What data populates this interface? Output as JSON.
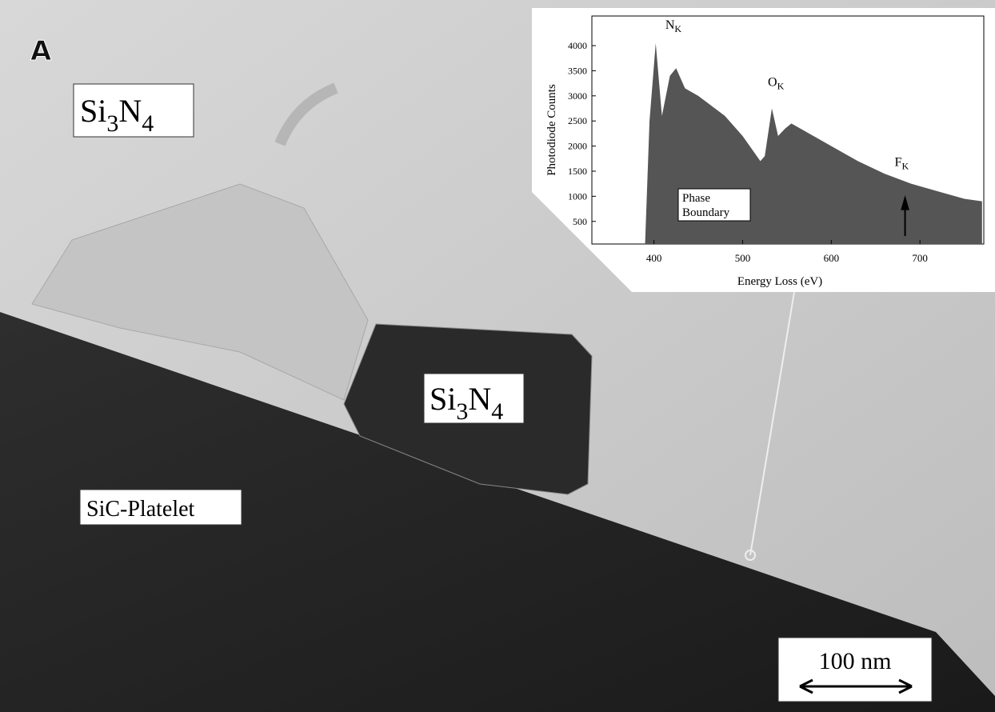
{
  "panel_label": "A",
  "labels": [
    [
      {
        "text": "Si"
      },
      {
        "text": "3",
        "sub": true
      },
      {
        "text": "N"
      },
      {
        "text": "4",
        "sub": true
      }
    ],
    [
      {
        "text": "Si"
      },
      {
        "text": "3",
        "sub": true
      },
      {
        "text": "N"
      },
      {
        "text": "4",
        "sub": true
      }
    ],
    [
      {
        "text": "SiC-Platelet"
      }
    ]
  ],
  "scale_bar": "100 nm",
  "chart_data": {
    "type": "area",
    "x_label": "Energy Loss (eV)",
    "y_label": "Photodiode Counts",
    "color": "#555555",
    "x": [
      330,
      390,
      395,
      402,
      409,
      418,
      425,
      435,
      450,
      480,
      500,
      520,
      525,
      533,
      540,
      548,
      555,
      570,
      600,
      630,
      660,
      690,
      720,
      750,
      770
    ],
    "values": [
      0,
      0,
      2500,
      4050,
      2600,
      3400,
      3550,
      3150,
      3000,
      2600,
      2200,
      1700,
      1800,
      2750,
      2200,
      2350,
      2450,
      2300,
      2000,
      1700,
      1450,
      1250,
      1100,
      950,
      900
    ],
    "xlim": [
      330,
      772
    ],
    "ylim": [
      50,
      4590
    ],
    "xticks": [
      400,
      500,
      600,
      700
    ],
    "yticks": [
      500,
      1000,
      1500,
      2000,
      2500,
      3000,
      3500,
      4000
    ],
    "annotations": [
      {
        "x": 402,
        "y": 4050,
        "parts": [
          {
            "text": "N"
          },
          {
            "text": "K",
            "sub": true
          }
        ]
      },
      {
        "x": 533,
        "y": 2750,
        "parts": [
          {
            "text": "O"
          },
          {
            "text": "K",
            "sub": true
          }
        ]
      },
      {
        "x": 685,
        "y": 1250,
        "parts": [
          {
            "text": "F"
          },
          {
            "text": "K",
            "sub": true
          }
        ]
      }
    ],
    "box_text": [
      "Phase",
      "Boundary"
    ]
  }
}
